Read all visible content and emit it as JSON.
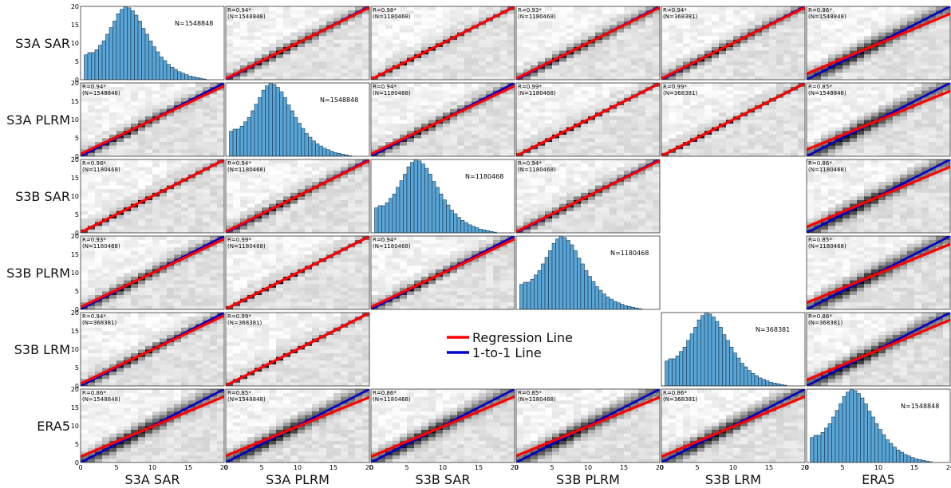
{
  "figure": {
    "panel_letter": "",
    "variables": [
      "S3A SAR",
      "S3A PLRM",
      "S3B SAR",
      "S3B PLRM",
      "S3B LRM",
      "ERA5"
    ],
    "row_labels": [
      "S3A SAR",
      "S3A PLRM",
      "S3B SAR",
      "S3B PLRM",
      "S3B LRM",
      "ERA5"
    ],
    "col_labels": [
      "S3A SAR",
      "S3A PLRM",
      "S3B SAR",
      "S3B PLRM",
      "S3B LRM",
      "ERA5"
    ],
    "axis_ticks": [
      "0",
      "5",
      "10",
      "15",
      "20"
    ],
    "legend": {
      "placement": "lower-middle",
      "items": [
        {
          "label": "Regression Line",
          "color": "#ff0000"
        },
        {
          "label": "1-to-1 Line",
          "color": "#0000cc"
        }
      ]
    },
    "colors": {
      "hist_fill": "#5aa5d6",
      "hist_edge": "#1a3a52"
    }
  },
  "chart_data": {
    "type": "heatmap",
    "description_type": "scatter-matrix",
    "axis_range": [
      0,
      20
    ],
    "histogram": {
      "bins_start": 0.5,
      "bin_width": 0.5,
      "relative_heights": [
        0.34,
        0.37,
        0.37,
        0.41,
        0.47,
        0.53,
        0.62,
        0.71,
        0.8,
        0.9,
        0.96,
        1.0,
        0.98,
        0.94,
        0.88,
        0.8,
        0.7,
        0.62,
        0.53,
        0.45,
        0.38,
        0.31,
        0.26,
        0.21,
        0.17,
        0.14,
        0.11,
        0.09,
        0.07,
        0.05,
        0.04,
        0.03,
        0.02,
        0.01
      ],
      "ylim": [
        0,
        20
      ],
      "counts": {
        "0": "N=1548848",
        "1": "N=1548848",
        "2": "N=1180468",
        "3": "N=1180468",
        "4": "N=368381",
        "5": "N=1548848"
      }
    },
    "cells": [
      {
        "row": 0,
        "col": 1,
        "r": "R=0.94*",
        "n": "(N=1548848)",
        "slope": 0.97,
        "intercept": 0.3
      },
      {
        "row": 0,
        "col": 2,
        "r": "R=0.98*",
        "n": "(N=1180468)",
        "slope": 0.99,
        "intercept": 0.1
      },
      {
        "row": 0,
        "col": 3,
        "r": "R=0.93*",
        "n": "(N=1180468)",
        "slope": 0.97,
        "intercept": 0.3
      },
      {
        "row": 0,
        "col": 4,
        "r": "R=0.94*",
        "n": "(N=368381)",
        "slope": 0.97,
        "intercept": 0.3
      },
      {
        "row": 0,
        "col": 5,
        "r": "R=0.86*",
        "n": "(N=1548848)",
        "slope": 0.82,
        "intercept": 1.6
      },
      {
        "row": 1,
        "col": 0,
        "r": "R=0.94*",
        "n": "(N=1548848)",
        "slope": 0.93,
        "intercept": 0.6
      },
      {
        "row": 1,
        "col": 2,
        "r": "R=0.94*",
        "n": "(N=1180468)",
        "slope": 0.93,
        "intercept": 0.6
      },
      {
        "row": 1,
        "col": 3,
        "r": "R=0.99*",
        "n": "(N=1180468)",
        "slope": 0.99,
        "intercept": 0.1
      },
      {
        "row": 1,
        "col": 4,
        "r": "R=0.99*",
        "n": "(N=368381)",
        "slope": 0.99,
        "intercept": 0.1
      },
      {
        "row": 1,
        "col": 5,
        "r": "R=0.85*",
        "n": "(N=1548848)",
        "slope": 0.8,
        "intercept": 1.8
      },
      {
        "row": 2,
        "col": 0,
        "r": "R=0.98*",
        "n": "(N=1180468)",
        "slope": 0.99,
        "intercept": 0.1
      },
      {
        "row": 2,
        "col": 1,
        "r": "R=0.94*",
        "n": "(N=1180468)",
        "slope": 0.97,
        "intercept": 0.3
      },
      {
        "row": 2,
        "col": 3,
        "r": "R=0.94*",
        "n": "(N=1180468)",
        "slope": 0.97,
        "intercept": 0.3
      },
      {
        "row": 2,
        "col": 5,
        "r": "R=0.86*",
        "n": "(N=1180468)",
        "slope": 0.82,
        "intercept": 1.6
      },
      {
        "row": 3,
        "col": 0,
        "r": "R=0.93*",
        "n": "(N=1180468)",
        "slope": 0.93,
        "intercept": 0.6
      },
      {
        "row": 3,
        "col": 1,
        "r": "R=0.99*",
        "n": "(N=1180468)",
        "slope": 0.99,
        "intercept": 0.1
      },
      {
        "row": 3,
        "col": 2,
        "r": "R=0.94*",
        "n": "(N=1180468)",
        "slope": 0.93,
        "intercept": 0.6
      },
      {
        "row": 3,
        "col": 5,
        "r": "R=0.85*",
        "n": "(N=1180468)",
        "slope": 0.8,
        "intercept": 1.8
      },
      {
        "row": 4,
        "col": 0,
        "r": "R=0.94*",
        "n": "(N=368381)",
        "slope": 0.93,
        "intercept": 0.6
      },
      {
        "row": 4,
        "col": 1,
        "r": "R=0.99*",
        "n": "(N=368381)",
        "slope": 0.99,
        "intercept": 0.1
      },
      {
        "row": 4,
        "col": 5,
        "r": "R=0.86*",
        "n": "(N=368381)",
        "slope": 0.82,
        "intercept": 1.6
      },
      {
        "row": 5,
        "col": 0,
        "r": "R=0.86*",
        "n": "(N=1548848)",
        "slope": 0.82,
        "intercept": 1.6
      },
      {
        "row": 5,
        "col": 1,
        "r": "R=0.85*",
        "n": "(N=1548848)",
        "slope": 0.8,
        "intercept": 1.8
      },
      {
        "row": 5,
        "col": 2,
        "r": "R=0.86*",
        "n": "(N=1180468)",
        "slope": 0.82,
        "intercept": 1.6
      },
      {
        "row": 5,
        "col": 3,
        "r": "R=0.85*",
        "n": "(N=1180468)",
        "slope": 0.8,
        "intercept": 1.8
      },
      {
        "row": 5,
        "col": 4,
        "r": "R=0.86*",
        "n": "(N=368381)",
        "slope": 0.82,
        "intercept": 1.6
      }
    ]
  }
}
